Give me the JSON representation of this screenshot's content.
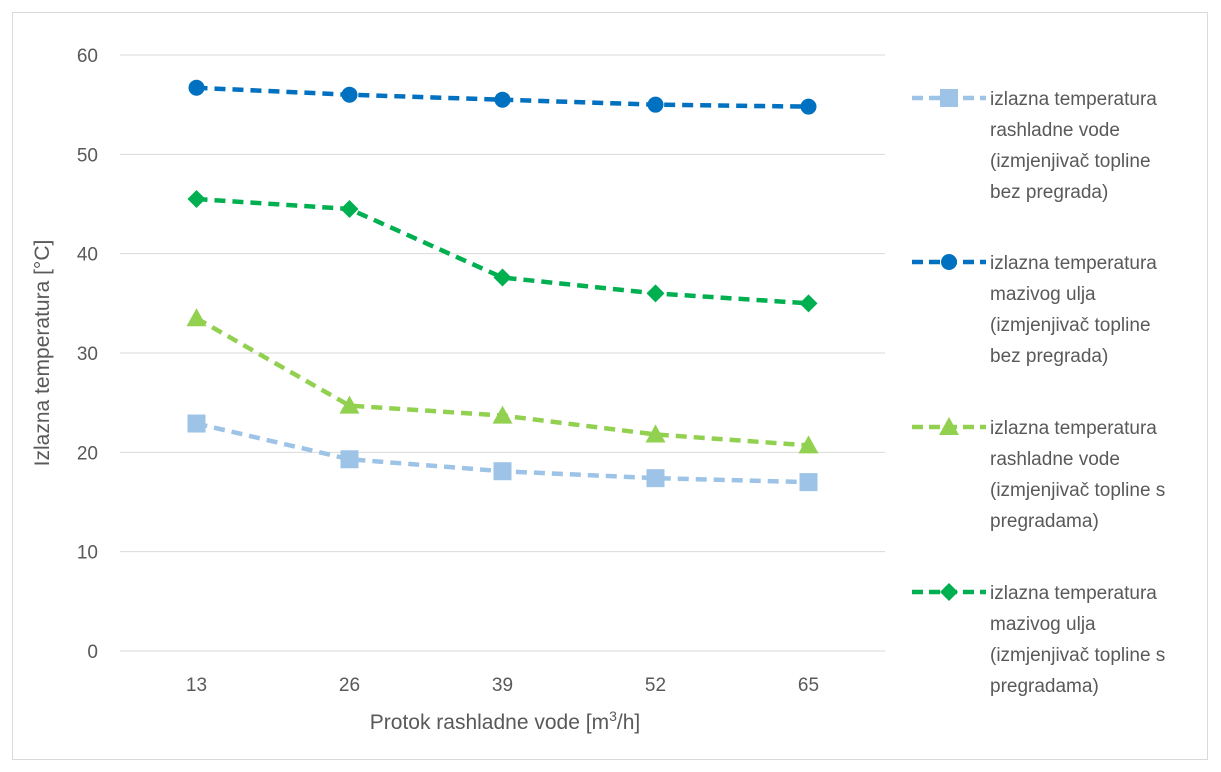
{
  "chart_data": {
    "type": "line",
    "title": "",
    "xlabel": "Protok rashladne vode [m³/h]",
    "xlabel_parts": {
      "main": "Protok rashladne vode [m",
      "sup": "3",
      "tail": "/h]"
    },
    "ylabel": "Izlazna temperatura [°C]",
    "ylim": [
      0,
      60
    ],
    "yticks": [
      "0",
      "10",
      "20",
      "30",
      "40",
      "50",
      "60"
    ],
    "categories": [
      "13",
      "26",
      "39",
      "52",
      "65"
    ],
    "grid": true,
    "legend_position": "right",
    "series": [
      {
        "name": "izlazna temperatura rashladne vode (izmjenjivač topline bez pregrada)",
        "legend_lines": [
          "izlazna temperatura",
          "rashladne vode",
          "(izmjenjivač topline",
          "bez pregrada)"
        ],
        "color": "#9DC3E6",
        "marker": "square",
        "line_style": "dashed",
        "values": [
          22.9,
          19.3,
          18.1,
          17.4,
          17.0
        ]
      },
      {
        "name": "izlazna temperatura mazivog ulja (izmjenjivač topline bez pregrada)",
        "legend_lines": [
          "izlazna temperatura",
          "mazivog ulja",
          "(izmjenjivač topline",
          "bez pregrada)"
        ],
        "color": "#0070C0",
        "marker": "circle",
        "line_style": "dashed",
        "values": [
          56.7,
          56.0,
          55.5,
          55.0,
          54.8
        ]
      },
      {
        "name": "izlazna temperatura rashladne vode (izmjenjivač topline s pregradama)",
        "legend_lines": [
          "izlazna temperatura",
          "rashladne vode",
          "(izmjenjivač topline s",
          "pregradama)"
        ],
        "color": "#92D050",
        "marker": "triangle",
        "line_style": "dashed",
        "values": [
          33.5,
          24.7,
          23.7,
          21.8,
          20.7
        ]
      },
      {
        "name": "izlazna temperatura mazivog ulja (izmjenjivač topline s pregradama)",
        "legend_lines": [
          "izlazna temperatura",
          "mazivog ulja",
          "(izmjenjivač topline s",
          "pregradama)"
        ],
        "color": "#00B050",
        "marker": "diamond",
        "line_style": "dashed",
        "values": [
          45.5,
          44.5,
          37.6,
          36.0,
          35.0
        ]
      }
    ]
  }
}
